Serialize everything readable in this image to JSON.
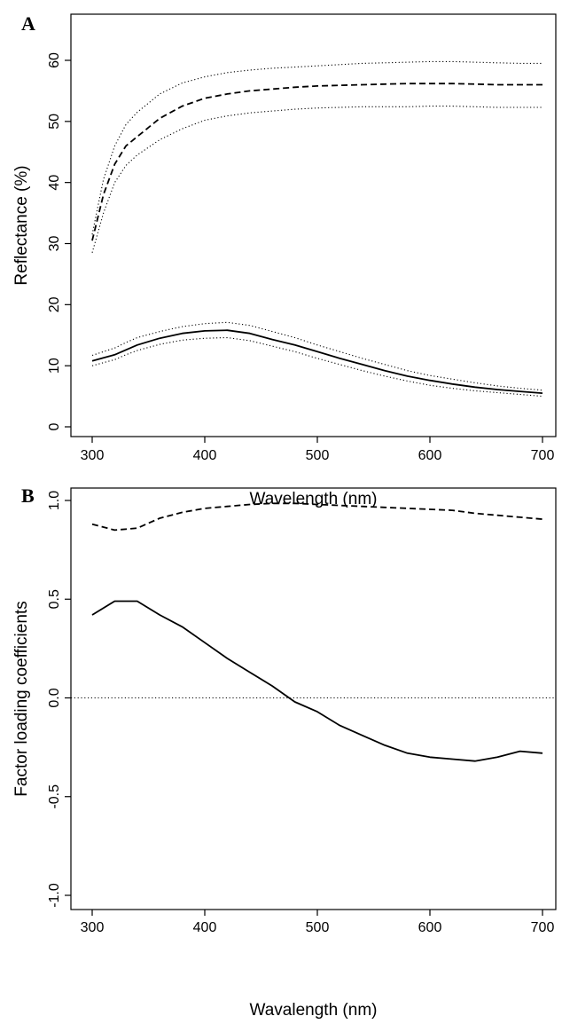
{
  "chart_data": [
    {
      "panel_label": "A",
      "type": "line",
      "xlabel": "Wavelength (nm)",
      "ylabel": "Reflectance (%)",
      "xlim": [
        300,
        700
      ],
      "ylim": [
        0,
        60
      ],
      "x_ticks": [
        300,
        400,
        500,
        600,
        700
      ],
      "y_ticks": [
        0,
        10,
        20,
        30,
        40,
        50,
        60
      ],
      "grid": false,
      "legend": "none",
      "x": [
        300,
        310,
        320,
        330,
        340,
        360,
        380,
        400,
        420,
        440,
        460,
        480,
        500,
        520,
        540,
        560,
        580,
        600,
        620,
        640,
        660,
        680,
        700
      ],
      "series": [
        {
          "style": "dashed",
          "values": [
            30.5,
            38.0,
            43.0,
            46.0,
            47.5,
            50.5,
            52.5,
            53.8,
            54.5,
            55.0,
            55.3,
            55.6,
            55.8,
            55.9,
            56.0,
            56.1,
            56.2,
            56.2,
            56.2,
            56.1,
            56.0,
            56.0,
            56.0
          ]
        },
        {
          "style": "dotted",
          "values": [
            31.5,
            40.5,
            46.0,
            49.5,
            51.5,
            54.5,
            56.3,
            57.3,
            58.0,
            58.4,
            58.7,
            58.9,
            59.1,
            59.3,
            59.5,
            59.6,
            59.7,
            59.8,
            59.8,
            59.7,
            59.6,
            59.5,
            59.5
          ]
        },
        {
          "style": "dotted",
          "values": [
            28.5,
            35.0,
            40.0,
            42.8,
            44.5,
            47.0,
            48.8,
            50.2,
            50.9,
            51.4,
            51.7,
            52.0,
            52.2,
            52.3,
            52.4,
            52.4,
            52.4,
            52.5,
            52.5,
            52.4,
            52.3,
            52.3,
            52.3
          ]
        },
        {
          "style": "solid",
          "values": [
            10.8,
            11.3,
            11.8,
            12.6,
            13.4,
            14.5,
            15.3,
            15.7,
            15.8,
            15.3,
            14.3,
            13.4,
            12.3,
            11.2,
            10.2,
            9.2,
            8.3,
            7.6,
            7.0,
            6.5,
            6.1,
            5.8,
            5.5
          ]
        },
        {
          "style": "dotted",
          "values": [
            11.7,
            12.3,
            12.9,
            13.8,
            14.6,
            15.6,
            16.4,
            16.9,
            17.1,
            16.6,
            15.6,
            14.6,
            13.4,
            12.3,
            11.2,
            10.2,
            9.2,
            8.4,
            7.8,
            7.2,
            6.7,
            6.3,
            6.0
          ]
        },
        {
          "style": "dotted",
          "values": [
            10.0,
            10.5,
            11.0,
            11.8,
            12.5,
            13.5,
            14.2,
            14.5,
            14.6,
            14.1,
            13.2,
            12.3,
            11.2,
            10.2,
            9.2,
            8.3,
            7.5,
            6.8,
            6.3,
            5.9,
            5.6,
            5.3,
            5.0
          ]
        }
      ]
    },
    {
      "panel_label": "B",
      "type": "line",
      "xlabel": "Wavalength (nm)",
      "ylabel": "Factor loading coefficients",
      "xlim": [
        300,
        700
      ],
      "ylim": [
        -1.0,
        1.0
      ],
      "x_ticks": [
        300,
        400,
        500,
        600,
        700
      ],
      "y_ticks": [
        -1.0,
        -0.5,
        0.0,
        0.5,
        1.0
      ],
      "y_tick_labels": [
        "-1.0",
        "-0.5",
        "0.0",
        "0.5",
        "1.0"
      ],
      "grid": false,
      "legend": "none",
      "reference_line": {
        "y": 0.0,
        "style": "dotted"
      },
      "x": [
        300,
        320,
        340,
        360,
        380,
        400,
        420,
        440,
        460,
        480,
        500,
        520,
        540,
        560,
        580,
        600,
        620,
        640,
        660,
        680,
        700
      ],
      "series": [
        {
          "style": "dashed",
          "values": [
            0.88,
            0.85,
            0.86,
            0.91,
            0.94,
            0.96,
            0.97,
            0.98,
            0.985,
            0.985,
            0.98,
            0.975,
            0.97,
            0.965,
            0.96,
            0.955,
            0.95,
            0.935,
            0.925,
            0.915,
            0.905
          ]
        },
        {
          "style": "solid",
          "values": [
            0.42,
            0.49,
            0.49,
            0.42,
            0.36,
            0.28,
            0.2,
            0.13,
            0.06,
            -0.02,
            -0.07,
            -0.14,
            -0.19,
            -0.24,
            -0.28,
            -0.3,
            -0.31,
            -0.32,
            -0.3,
            -0.27,
            -0.28
          ]
        }
      ]
    }
  ]
}
